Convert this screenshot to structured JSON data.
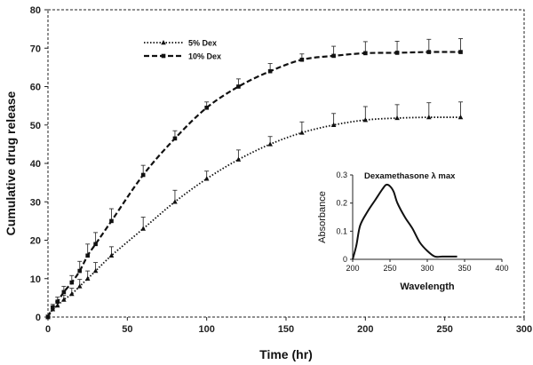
{
  "chart_data": [
    {
      "type": "line",
      "title": "",
      "xlabel": "Time (hr)",
      "ylabel": "Cumulative drug release",
      "xlim": [
        0,
        300
      ],
      "ylim": [
        0,
        80
      ],
      "xticks": [
        0,
        50,
        100,
        150,
        200,
        250,
        300
      ],
      "yticks": [
        0,
        10,
        20,
        30,
        40,
        50,
        60,
        70,
        80
      ],
      "grid": false,
      "legend_position": "top-left",
      "series": [
        {
          "name": "5% Dex",
          "line_style": "dotted",
          "marker": "triangle",
          "x": [
            0,
            3,
            6,
            10,
            15,
            20,
            25,
            30,
            40,
            60,
            80,
            100,
            120,
            140,
            160,
            180,
            200,
            220,
            240,
            260
          ],
          "y": [
            0,
            2,
            3,
            4.5,
            6,
            8,
            10,
            12,
            16,
            23,
            30,
            36,
            41,
            45,
            48,
            50,
            51.3,
            51.8,
            52,
            52
          ],
          "error": [
            0.5,
            0.8,
            1,
            1.2,
            1.5,
            1.8,
            2,
            2.2,
            2.3,
            3,
            3,
            2,
            2.5,
            2,
            2.8,
            3,
            3.5,
            3.5,
            3.8,
            4
          ]
        },
        {
          "name": "10% Dex",
          "line_style": "dashed",
          "marker": "square",
          "x": [
            0,
            3,
            6,
            10,
            15,
            20,
            25,
            30,
            40,
            60,
            80,
            100,
            120,
            140,
            160,
            180,
            200,
            220,
            240,
            260
          ],
          "y": [
            0,
            2.5,
            4,
            6.5,
            9,
            12,
            16,
            19,
            25,
            37,
            46.5,
            54.5,
            60,
            64,
            67,
            68,
            68.7,
            68.8,
            69,
            69
          ],
          "error": [
            0.5,
            0.8,
            1.2,
            1.5,
            1.8,
            2.5,
            3,
            3,
            3.2,
            2.5,
            2,
            1.5,
            2,
            2,
            1.5,
            2.5,
            3,
            3,
            3.3,
            3.5
          ]
        }
      ]
    },
    {
      "type": "line",
      "title": "Dexamethasone λ max",
      "xlabel": "Wavelength",
      "ylabel": "Absorbance",
      "xlim": [
        200,
        400
      ],
      "ylim": [
        0,
        0.3
      ],
      "xticks": [
        200,
        250,
        300,
        350,
        400
      ],
      "yticks": [
        0,
        0.1,
        0.2,
        0.3
      ],
      "grid": false,
      "series": [
        {
          "x": [
            200,
            205,
            210,
            220,
            230,
            240,
            245,
            250,
            255,
            260,
            270,
            280,
            290,
            300,
            310,
            320,
            330,
            340
          ],
          "y": [
            0,
            0.05,
            0.12,
            0.17,
            0.21,
            0.25,
            0.265,
            0.26,
            0.24,
            0.2,
            0.15,
            0.11,
            0.06,
            0.03,
            0.01,
            0.01,
            0.01,
            0.01
          ]
        }
      ]
    }
  ]
}
